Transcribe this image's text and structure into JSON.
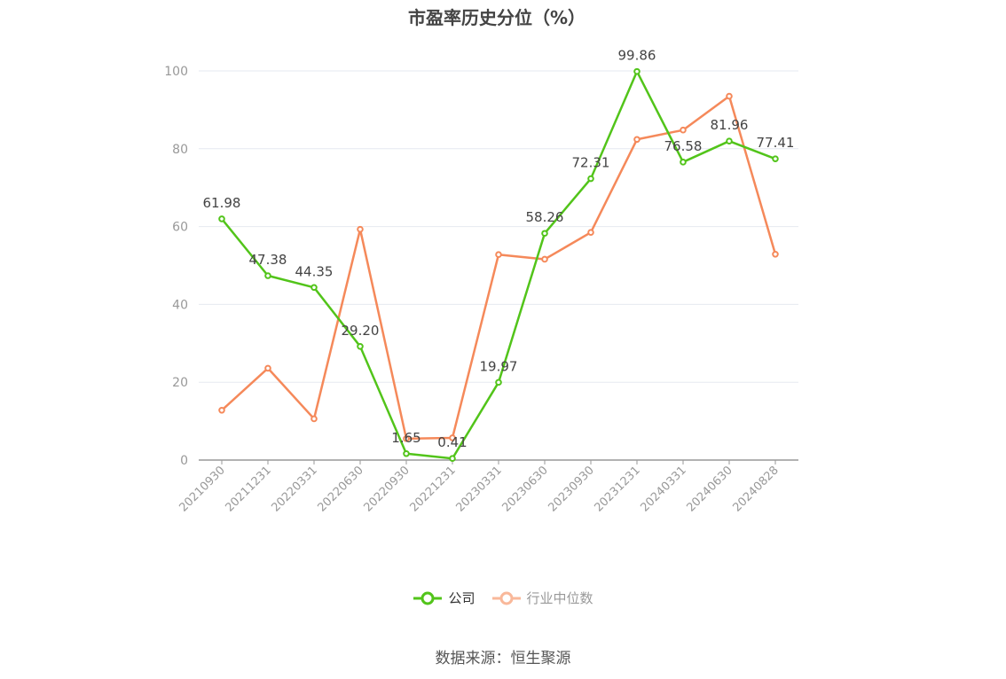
{
  "chart_data": {
    "type": "line",
    "title": "市盈率历史分位（%）",
    "categories": [
      "20210930",
      "20211231",
      "20220331",
      "20220630",
      "20220930",
      "20221231",
      "20230331",
      "20230630",
      "20230930",
      "20231231",
      "20240331",
      "20240630",
      "20240828"
    ],
    "series": [
      {
        "name": "公司",
        "color": "#52c41a",
        "values": [
          61.98,
          47.38,
          44.35,
          29.2,
          1.65,
          0.41,
          19.97,
          58.26,
          72.31,
          99.86,
          76.58,
          81.96,
          77.41
        ],
        "labels": [
          "61.98",
          "47.38",
          "44.35",
          "29.20",
          "1.65",
          "0.41",
          "19.97",
          "58.26",
          "72.31",
          "99.86",
          "76.58",
          "81.96",
          "77.41"
        ]
      },
      {
        "name": "行业中位数",
        "color": "#f5895a",
        "values": [
          12.8,
          23.6,
          10.6,
          59.3,
          5.5,
          5.7,
          52.8,
          51.6,
          58.5,
          82.4,
          84.8,
          93.5,
          52.9
        ]
      }
    ],
    "ylim": [
      0,
      100
    ],
    "yticks": [
      "0",
      "20",
      "40",
      "60",
      "80",
      "100"
    ],
    "grid": true,
    "legend_position": "bottom"
  },
  "source_text": "数据来源：恒生聚源",
  "colors": {
    "company": "#52c41a",
    "industry": "#f5895a",
    "industry_legend": "#f9b89a",
    "grid": "#e6e9f0",
    "axis": "#999999"
  }
}
